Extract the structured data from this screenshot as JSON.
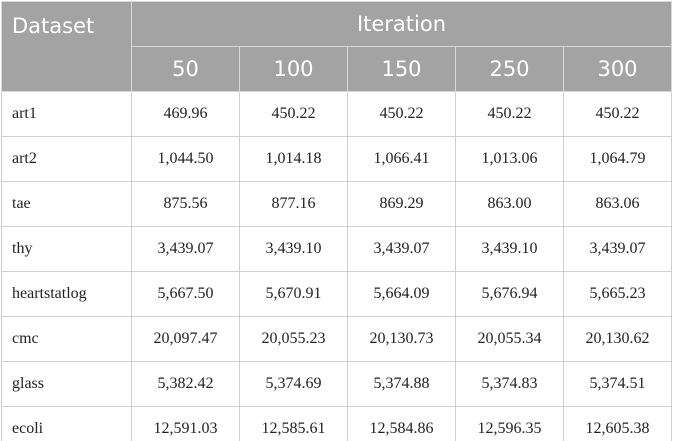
{
  "table": {
    "header": {
      "dataset": "Dataset",
      "group": "Iteration",
      "iterations": [
        "50",
        "100",
        "150",
        "250",
        "300"
      ]
    },
    "rows": [
      [
        "art1",
        "469.96",
        "450.22",
        "450.22",
        "450.22",
        "450.22"
      ],
      [
        "art2",
        "1,044.50",
        "1,014.18",
        "1,066.41",
        "1,013.06",
        "1,064.79"
      ],
      [
        "tae",
        "875.56",
        "877.16",
        "869.29",
        "863.00",
        "863.06"
      ],
      [
        "thy",
        "3,439.07",
        "3,439.10",
        "3,439.07",
        "3,439.10",
        "3,439.07"
      ],
      [
        "heartstatlog",
        "5,667.50",
        "5,670.91",
        "5,664.09",
        "5,676.94",
        "5,665.23"
      ],
      [
        "cmc",
        "20,097.47",
        "20,055.23",
        "20,130.73",
        "20,055.34",
        "20,130.62"
      ],
      [
        "glass",
        "5,382.42",
        "5,374.69",
        "5,374.88",
        "5,374.83",
        "5,374.51"
      ],
      [
        "ecoli",
        "12,591.03",
        "12,585.61",
        "12,584.86",
        "12,596.35",
        "12,605.38"
      ]
    ]
  }
}
